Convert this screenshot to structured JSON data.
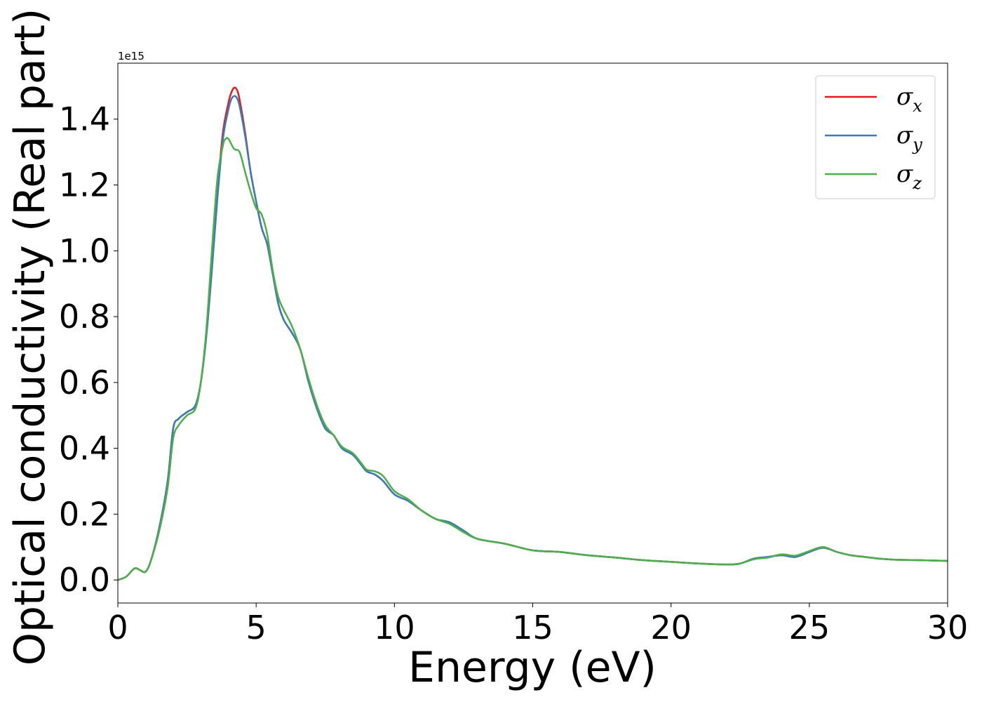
{
  "chart_data": {
    "type": "line",
    "xlabel": "Energy (eV)",
    "ylabel": "Optical conductivity (Real part)",
    "y_offset_text": "1e15",
    "y_scale": 1000000000000000.0,
    "xlim": [
      0,
      30
    ],
    "ylim": [
      -0.07,
      1.57
    ],
    "x_ticks": [
      0,
      5,
      10,
      15,
      20,
      25,
      30
    ],
    "x_tick_labels": [
      "0",
      "5",
      "10",
      "15",
      "20",
      "25",
      "30"
    ],
    "y_ticks": [
      0.0,
      0.2,
      0.4,
      0.6,
      0.8,
      1.0,
      1.2,
      1.4
    ],
    "y_tick_labels": [
      "0.0",
      "0.2",
      "0.4",
      "0.6",
      "0.8",
      "1.0",
      "1.2",
      "1.4"
    ],
    "grid": false,
    "legend": {
      "placement": "top-right",
      "entries": [
        {
          "base": "σ",
          "sub": "x",
          "color": "#e41a1c"
        },
        {
          "base": "σ",
          "sub": "y",
          "color": "#377eb8"
        },
        {
          "base": "σ",
          "sub": "z",
          "color": "#4daf4a"
        }
      ]
    },
    "series": [
      {
        "name": "σx",
        "color": "#e41a1c",
        "x": [
          0,
          0.3,
          0.6,
          0.8,
          1.0,
          1.2,
          1.5,
          1.8,
          2.0,
          2.2,
          2.5,
          2.8,
          3.0,
          3.2,
          3.4,
          3.6,
          3.8,
          4.0,
          4.1,
          4.2,
          4.3,
          4.4,
          4.6,
          4.8,
          5.0,
          5.2,
          5.4,
          5.6,
          5.8,
          6.0,
          6.3,
          6.6,
          6.9,
          7.2,
          7.5,
          7.8,
          8.1,
          8.5,
          8.8,
          9.0,
          9.3,
          9.6,
          10.0,
          10.5,
          11.0,
          11.5,
          12.0,
          12.5,
          13.0,
          14.0,
          15.0,
          16.0,
          17.0,
          18.0,
          19.0,
          20.0,
          21.0,
          22.0,
          22.5,
          23.0,
          23.5,
          24.0,
          24.5,
          25.0,
          25.5,
          26.0,
          26.5,
          27.0,
          27.5,
          28.0,
          29.0,
          30.0
        ],
        "y": [
          0.0,
          0.01,
          0.035,
          0.03,
          0.025,
          0.06,
          0.16,
          0.3,
          0.46,
          0.49,
          0.51,
          0.53,
          0.6,
          0.75,
          0.95,
          1.18,
          1.36,
          1.45,
          1.48,
          1.495,
          1.49,
          1.46,
          1.36,
          1.24,
          1.15,
          1.07,
          1.02,
          0.93,
          0.84,
          0.79,
          0.75,
          0.7,
          0.6,
          0.52,
          0.46,
          0.44,
          0.4,
          0.38,
          0.35,
          0.33,
          0.32,
          0.3,
          0.26,
          0.24,
          0.21,
          0.185,
          0.175,
          0.15,
          0.125,
          0.11,
          0.09,
          0.085,
          0.075,
          0.068,
          0.06,
          0.055,
          0.05,
          0.047,
          0.05,
          0.065,
          0.07,
          0.075,
          0.07,
          0.085,
          0.098,
          0.085,
          0.075,
          0.07,
          0.065,
          0.062,
          0.06,
          0.058
        ]
      },
      {
        "name": "σy",
        "color": "#377eb8",
        "x": [
          0,
          0.3,
          0.6,
          0.8,
          1.0,
          1.2,
          1.5,
          1.8,
          2.0,
          2.2,
          2.5,
          2.8,
          3.0,
          3.2,
          3.4,
          3.6,
          3.8,
          4.0,
          4.1,
          4.2,
          4.3,
          4.4,
          4.6,
          4.8,
          5.0,
          5.2,
          5.4,
          5.6,
          5.8,
          6.0,
          6.3,
          6.6,
          6.9,
          7.2,
          7.5,
          7.8,
          8.1,
          8.5,
          8.8,
          9.0,
          9.3,
          9.6,
          10.0,
          10.5,
          11.0,
          11.5,
          12.0,
          12.5,
          13.0,
          14.0,
          15.0,
          16.0,
          17.0,
          18.0,
          19.0,
          20.0,
          21.0,
          22.0,
          22.5,
          23.0,
          23.5,
          24.0,
          24.5,
          25.0,
          25.5,
          26.0,
          26.5,
          27.0,
          27.5,
          28.0,
          29.0,
          30.0
        ],
        "y": [
          0.0,
          0.01,
          0.035,
          0.03,
          0.025,
          0.06,
          0.16,
          0.3,
          0.46,
          0.49,
          0.51,
          0.53,
          0.6,
          0.74,
          0.94,
          1.16,
          1.34,
          1.43,
          1.46,
          1.47,
          1.465,
          1.44,
          1.35,
          1.24,
          1.15,
          1.07,
          1.02,
          0.93,
          0.84,
          0.79,
          0.75,
          0.7,
          0.6,
          0.52,
          0.46,
          0.44,
          0.4,
          0.38,
          0.35,
          0.33,
          0.32,
          0.3,
          0.26,
          0.24,
          0.21,
          0.185,
          0.175,
          0.15,
          0.125,
          0.11,
          0.09,
          0.085,
          0.075,
          0.068,
          0.06,
          0.055,
          0.05,
          0.047,
          0.05,
          0.065,
          0.07,
          0.075,
          0.07,
          0.085,
          0.098,
          0.085,
          0.075,
          0.07,
          0.065,
          0.062,
          0.06,
          0.058
        ]
      },
      {
        "name": "σz",
        "color": "#4daf4a",
        "x": [
          0,
          0.3,
          0.6,
          0.8,
          1.0,
          1.2,
          1.5,
          1.8,
          2.0,
          2.2,
          2.5,
          2.8,
          3.0,
          3.2,
          3.4,
          3.6,
          3.8,
          3.9,
          4.0,
          4.2,
          4.4,
          4.6,
          4.8,
          5.0,
          5.2,
          5.4,
          5.6,
          5.8,
          6.0,
          6.3,
          6.6,
          6.9,
          7.2,
          7.5,
          7.8,
          8.1,
          8.5,
          8.8,
          9.0,
          9.3,
          9.6,
          10.0,
          10.5,
          11.0,
          11.5,
          12.0,
          12.5,
          13.0,
          14.0,
          15.0,
          16.0,
          17.0,
          18.0,
          19.0,
          20.0,
          21.0,
          22.0,
          22.5,
          23.0,
          23.5,
          24.0,
          24.5,
          25.0,
          25.5,
          26.0,
          26.5,
          27.0,
          27.5,
          28.0,
          29.0,
          30.0
        ],
        "y": [
          0.0,
          0.01,
          0.035,
          0.03,
          0.025,
          0.06,
          0.15,
          0.28,
          0.43,
          0.47,
          0.5,
          0.52,
          0.6,
          0.76,
          1.0,
          1.22,
          1.32,
          1.34,
          1.34,
          1.31,
          1.3,
          1.24,
          1.18,
          1.13,
          1.11,
          1.05,
          0.94,
          0.86,
          0.82,
          0.77,
          0.7,
          0.61,
          0.53,
          0.47,
          0.44,
          0.405,
          0.385,
          0.355,
          0.335,
          0.33,
          0.315,
          0.27,
          0.245,
          0.21,
          0.185,
          0.17,
          0.145,
          0.125,
          0.11,
          0.09,
          0.085,
          0.075,
          0.068,
          0.06,
          0.055,
          0.05,
          0.047,
          0.05,
          0.063,
          0.068,
          0.078,
          0.074,
          0.088,
          0.1,
          0.085,
          0.075,
          0.07,
          0.065,
          0.062,
          0.06,
          0.058
        ]
      }
    ]
  }
}
